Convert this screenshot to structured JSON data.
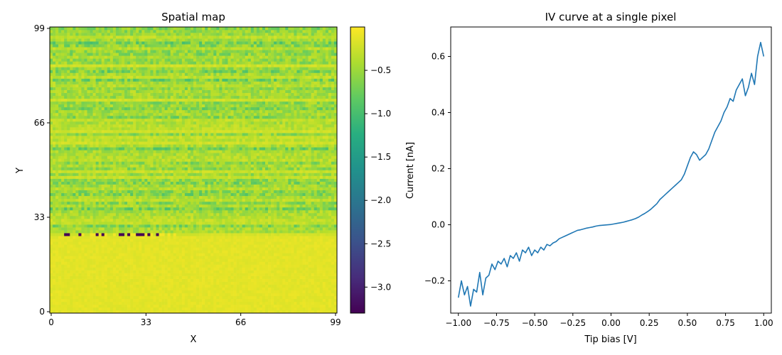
{
  "chart_data": [
    {
      "type": "heatmap",
      "title": "Spatial map",
      "xlabel": "X",
      "ylabel": "Y",
      "x_ticks": [
        "0",
        "33",
        "66",
        "99"
      ],
      "y_ticks": [
        "0",
        "33",
        "66",
        "99"
      ],
      "grid_size": [
        100,
        100
      ],
      "colormap": "viridis",
      "colorbar": {
        "range": [
          -3.3,
          0.0
        ],
        "ticks": [
          "−0.5",
          "−1.0",
          "−1.5",
          "−2.0",
          "−2.5",
          "−3.0"
        ],
        "tick_values": [
          -0.5,
          -1.0,
          -1.5,
          -2.0,
          -2.5,
          -3.0
        ]
      },
      "regions": [
        {
          "description": "rows 0-27 near-uniform",
          "value_range": [
            -0.3,
            -0.05
          ]
        },
        {
          "description": "rows 28-99 noisy striped",
          "value_range": [
            -1.4,
            -0.1
          ]
        },
        {
          "description": "defect streak row 27",
          "value_range": [
            -3.3,
            -0.05
          ]
        }
      ]
    },
    {
      "type": "line",
      "title": "IV curve at a single pixel",
      "xlabel": "Tip bias [V]",
      "ylabel": "Current [nA]",
      "xlim": [
        -1.05,
        1.05
      ],
      "ylim": [
        -0.315,
        0.705
      ],
      "x_ticks": [
        "−1.00",
        "−0.75",
        "−0.50",
        "−0.25",
        "0.00",
        "0.25",
        "0.50",
        "0.75",
        "1.00"
      ],
      "y_ticks": [
        "−0.2",
        "0.0",
        "0.2",
        "0.4",
        "0.6"
      ],
      "x_tick_values": [
        -1.0,
        -0.75,
        -0.5,
        -0.25,
        0.0,
        0.25,
        0.5,
        0.75,
        1.0
      ],
      "y_tick_values": [
        -0.2,
        0.0,
        0.2,
        0.4,
        0.6
      ],
      "series": [
        {
          "color": "#1f77b4",
          "x": [
            -1.0,
            -0.98,
            -0.96,
            -0.94,
            -0.92,
            -0.9,
            -0.88,
            -0.86,
            -0.84,
            -0.82,
            -0.8,
            -0.78,
            -0.76,
            -0.74,
            -0.72,
            -0.7,
            -0.68,
            -0.66,
            -0.64,
            -0.62,
            -0.6,
            -0.58,
            -0.56,
            -0.54,
            -0.52,
            -0.5,
            -0.48,
            -0.46,
            -0.44,
            -0.42,
            -0.4,
            -0.38,
            -0.36,
            -0.34,
            -0.32,
            -0.3,
            -0.28,
            -0.26,
            -0.24,
            -0.22,
            -0.2,
            -0.18,
            -0.16,
            -0.14,
            -0.12,
            -0.1,
            -0.08,
            -0.06,
            -0.04,
            -0.02,
            0.0,
            0.02,
            0.04,
            0.06,
            0.08,
            0.1,
            0.12,
            0.14,
            0.16,
            0.18,
            0.2,
            0.22,
            0.24,
            0.26,
            0.28,
            0.3,
            0.32,
            0.34,
            0.36,
            0.38,
            0.4,
            0.42,
            0.44,
            0.46,
            0.48,
            0.5,
            0.52,
            0.54,
            0.56,
            0.58,
            0.6,
            0.62,
            0.64,
            0.66,
            0.68,
            0.7,
            0.72,
            0.74,
            0.76,
            0.78,
            0.8,
            0.82,
            0.84,
            0.86,
            0.88,
            0.9,
            0.92,
            0.94,
            0.96,
            0.98,
            1.0
          ],
          "y": [
            -0.26,
            -0.2,
            -0.25,
            -0.22,
            -0.29,
            -0.23,
            -0.24,
            -0.17,
            -0.25,
            -0.19,
            -0.18,
            -0.14,
            -0.16,
            -0.13,
            -0.14,
            -0.12,
            -0.15,
            -0.11,
            -0.12,
            -0.1,
            -0.13,
            -0.09,
            -0.1,
            -0.08,
            -0.11,
            -0.09,
            -0.1,
            -0.08,
            -0.09,
            -0.07,
            -0.075,
            -0.065,
            -0.06,
            -0.05,
            -0.045,
            -0.04,
            -0.035,
            -0.03,
            -0.025,
            -0.02,
            -0.018,
            -0.015,
            -0.012,
            -0.01,
            -0.008,
            -0.005,
            -0.003,
            -0.002,
            -0.001,
            0.0,
            0.001,
            0.003,
            0.005,
            0.007,
            0.009,
            0.012,
            0.015,
            0.018,
            0.022,
            0.027,
            0.034,
            0.04,
            0.047,
            0.055,
            0.065,
            0.075,
            0.09,
            0.1,
            0.11,
            0.12,
            0.13,
            0.14,
            0.15,
            0.16,
            0.18,
            0.21,
            0.24,
            0.26,
            0.25,
            0.23,
            0.24,
            0.25,
            0.27,
            0.3,
            0.33,
            0.35,
            0.37,
            0.4,
            0.42,
            0.45,
            0.44,
            0.48,
            0.5,
            0.52,
            0.46,
            0.49,
            0.54,
            0.5,
            0.6,
            0.65,
            0.6
          ]
        }
      ]
    }
  ]
}
